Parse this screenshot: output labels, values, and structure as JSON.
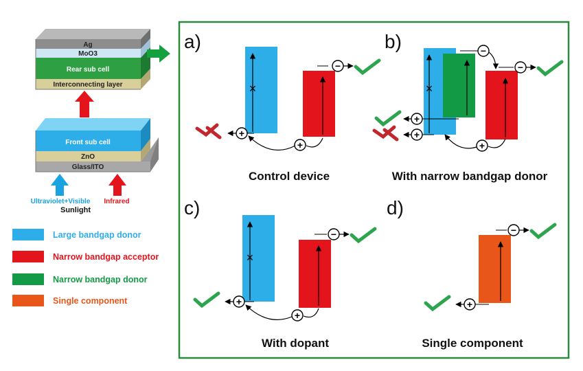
{
  "stack": {
    "layers": {
      "ag": "Ag",
      "moo3": "MoO3",
      "rear": "Rear sub cell",
      "interconnect": "Interconnecting layer",
      "front": "Front sub cell",
      "zno": "ZnO",
      "glass": "Glass/ITO"
    },
    "light": {
      "uv": "Ultraviolet+Visible",
      "ir": "Infrared",
      "sunlight": "Sunlight"
    }
  },
  "legend": [
    {
      "label": "Large bandgap donor",
      "color": "#2eaee8"
    },
    {
      "label": "Narrow bandgap acceptor",
      "color": "#e4141c"
    },
    {
      "label": "Narrow bandgap donor",
      "color": "#139a45"
    },
    {
      "label": "Single component",
      "color": "#e9561a"
    }
  ],
  "panels": {
    "a": {
      "letter": "a)",
      "caption": "Control device"
    },
    "b": {
      "letter": "b)",
      "caption": "With narrow bandgap donor"
    },
    "c": {
      "letter": "c)",
      "caption": "With dopant"
    },
    "d": {
      "letter": "d)",
      "caption": "Single component"
    }
  },
  "symbols": {
    "plus": "+",
    "minus": "−",
    "cross": "×"
  },
  "colors": {
    "panel_border": "#2b8a3e",
    "check": "#2ea44f",
    "fail": "#c0282e",
    "arrow_green": "#15a040",
    "arrow_red": "#e4141c",
    "arrow_blue": "#1aa3e0"
  }
}
